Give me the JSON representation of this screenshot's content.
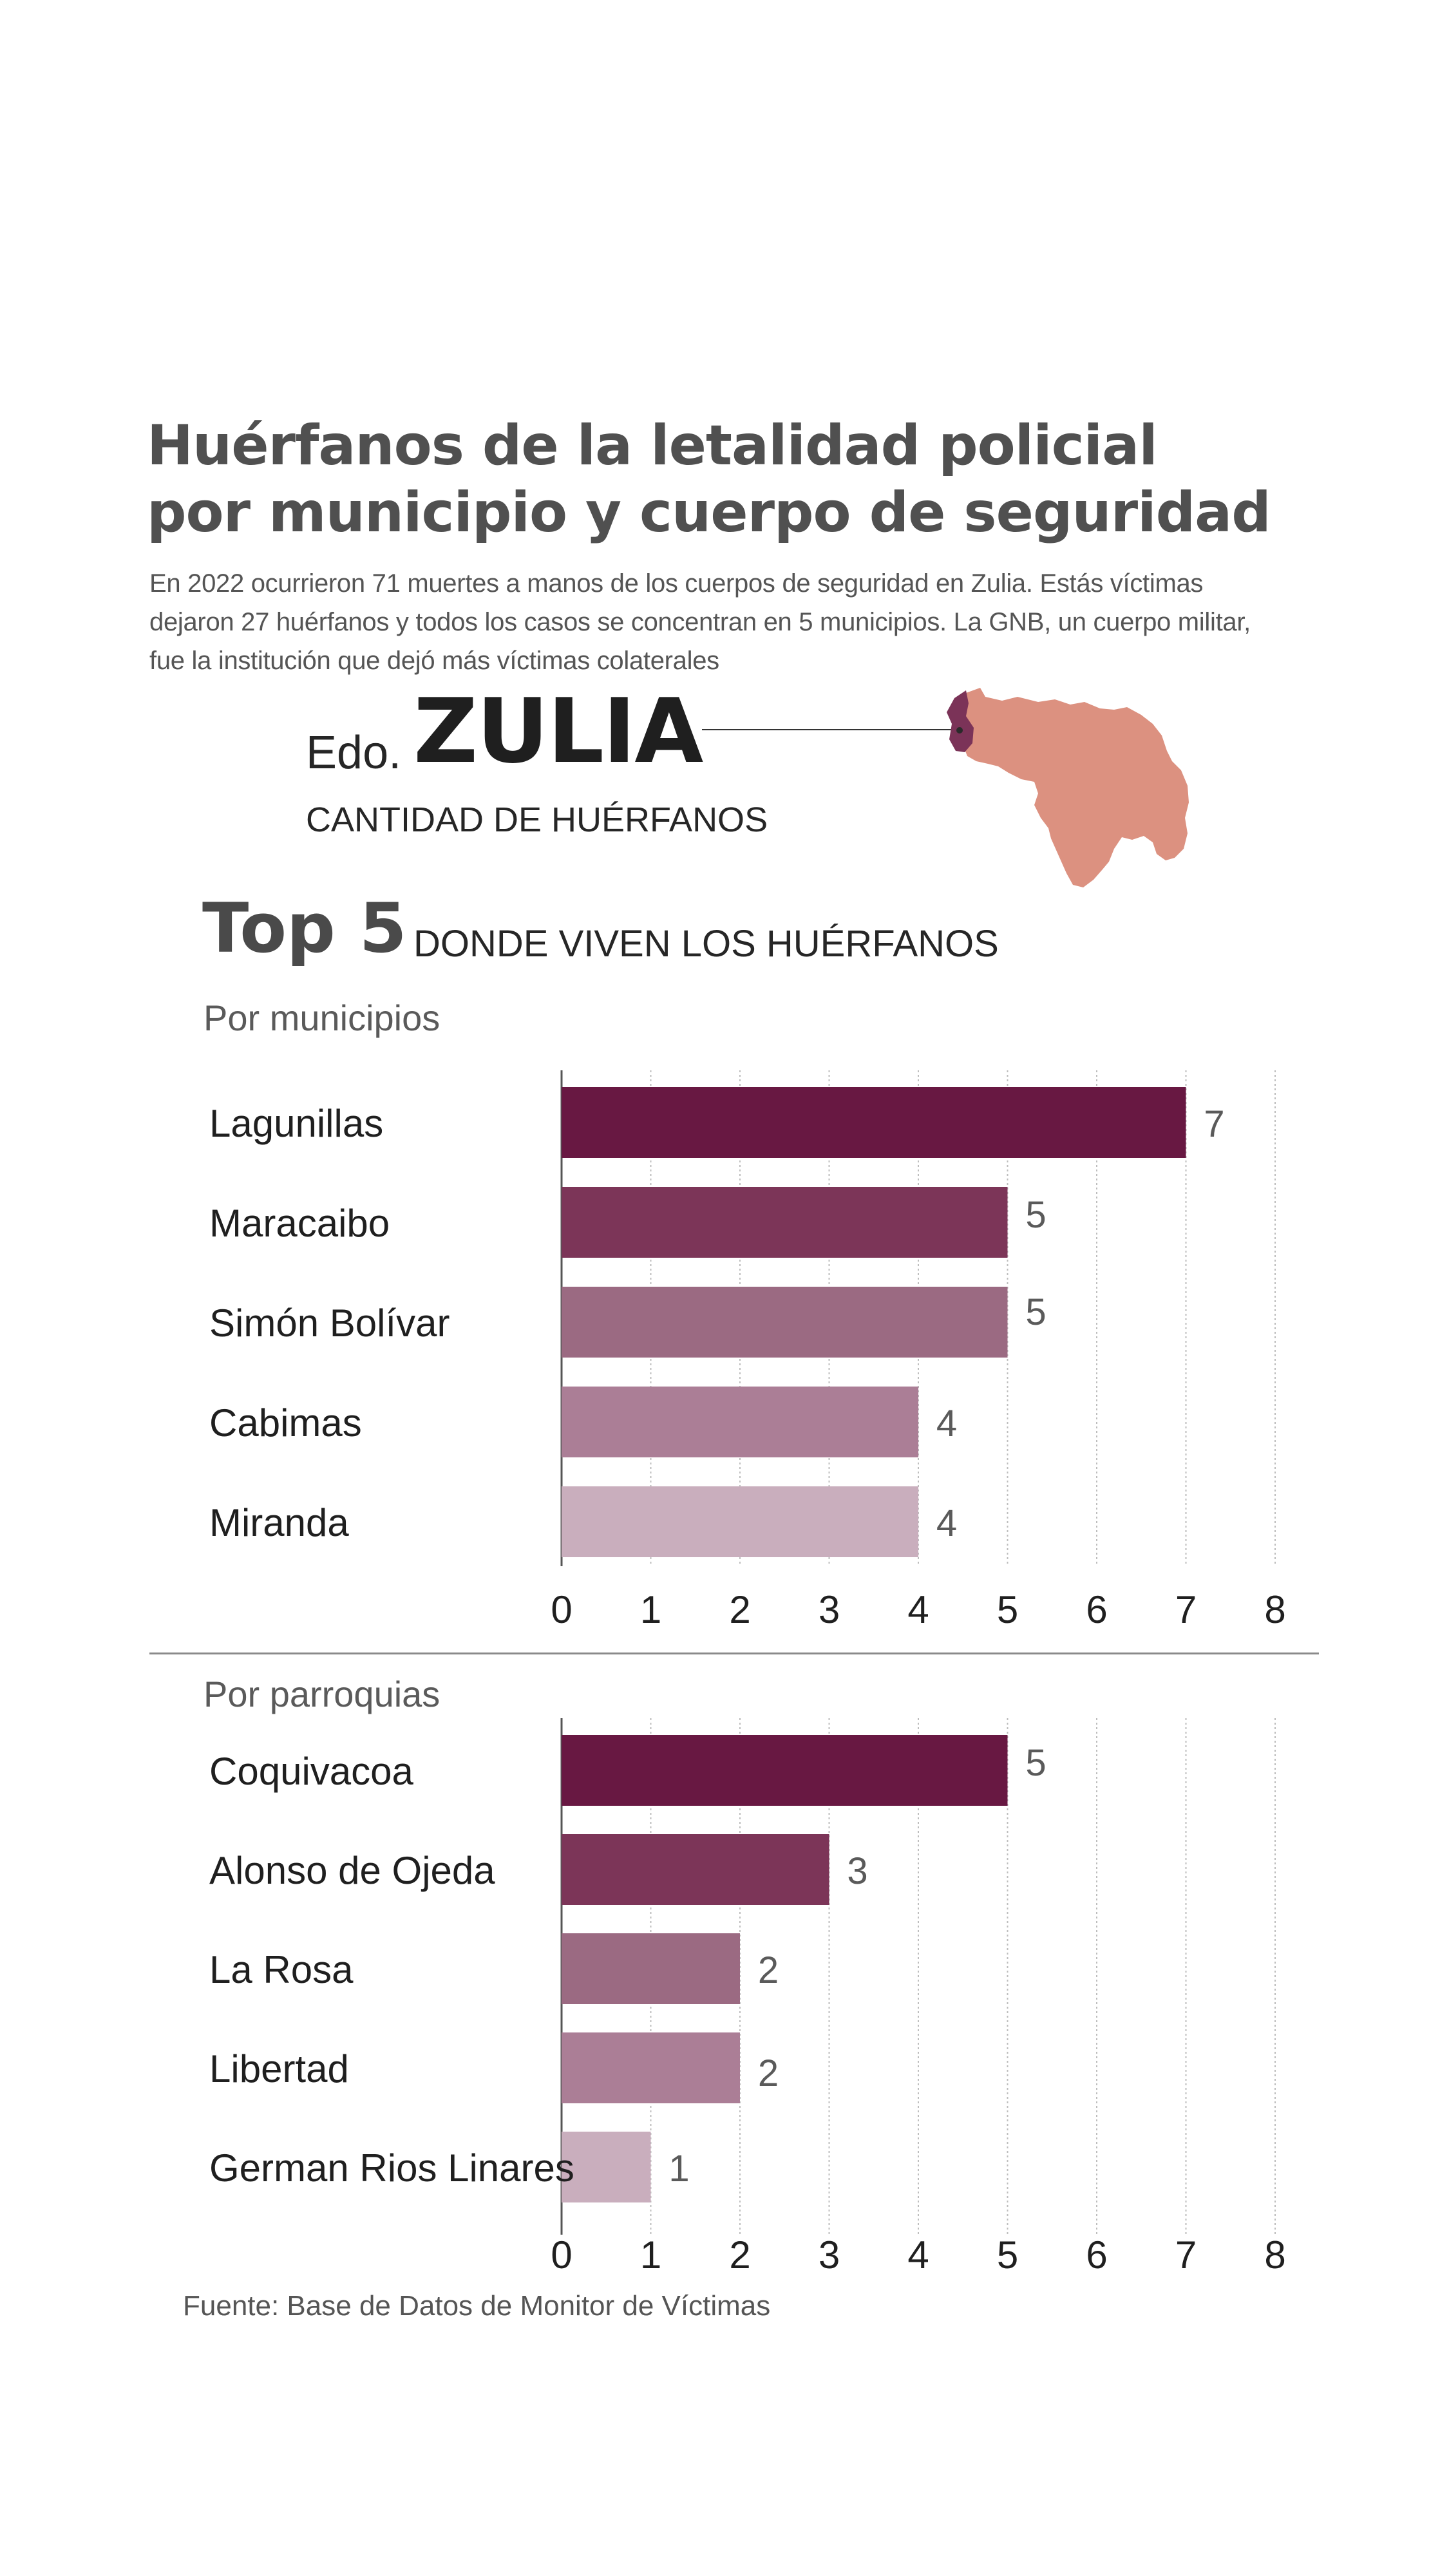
{
  "header": {
    "title_line1": "Huérfanos de la letalidad policial",
    "title_line2": "por municipio y cuerpo de seguridad",
    "subtitle_line1": "En 2022 ocurrieron 71 muertes a manos de los cuerpos de seguridad en Zulia. Estás víctimas",
    "subtitle_line2": "dejaron 27 huérfanos y todos los casos se concentran en 5 municipios. La GNB, un cuerpo militar,",
    "subtitle_line3": "fue la institución que dejó más víctimas colaterales"
  },
  "state_block": {
    "prefix": "Edo.",
    "name": "ZULIA",
    "caption": "CANTIDAD DE HUÉRFANOS"
  },
  "top5": {
    "label": "Top 5",
    "sublabel": "DONDE VIVEN LOS HUÉRFANOS"
  },
  "map": {
    "country_color": "#dc9180",
    "highlight_color": "#7b3358"
  },
  "colors": {
    "bars": [
      "#681842",
      "#7c3558",
      "#9b6a82",
      "#ab7e96",
      "#c9aebd"
    ],
    "grid": "#bdbdbd",
    "axis": "#555555",
    "value_labels": "#5a5a5a"
  },
  "chart_data": [
    {
      "type": "bar",
      "orientation": "horizontal",
      "title": "Por municipios",
      "categories": [
        "Lagunillas",
        "Maracaibo",
        "Simón Bolívar",
        "Cabimas",
        "Miranda"
      ],
      "values": [
        7,
        5,
        5,
        4,
        4
      ],
      "xlim": [
        0,
        8
      ],
      "xticks": [
        "0",
        "1",
        "2",
        "3",
        "4",
        "5",
        "6",
        "7",
        "8"
      ],
      "grid": true
    },
    {
      "type": "bar",
      "orientation": "horizontal",
      "title": "Por parroquias",
      "categories": [
        "Coquivacoa",
        "Alonso de Ojeda",
        "La Rosa",
        "Libertad",
        "German Rios Linares"
      ],
      "values": [
        5,
        3,
        2,
        2,
        1
      ],
      "xlim": [
        0,
        8
      ],
      "xticks": [
        "0",
        "1",
        "2",
        "3",
        "4",
        "5",
        "6",
        "7",
        "8"
      ],
      "grid": true
    }
  ],
  "source": "Fuente: Base de Datos de Monitor de Víctimas"
}
